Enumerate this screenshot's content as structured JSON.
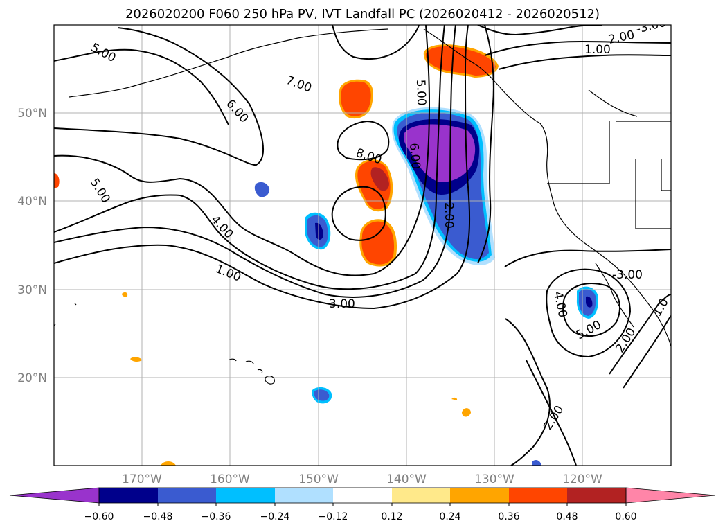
{
  "title": "2026020200 F060 250 hPa PV, IVT Landfall PC (2026020412 - 2026020512)",
  "map": {
    "lat_labels": [
      "50°N",
      "40°N",
      "30°N",
      "20°N"
    ],
    "lon_labels": [
      "170°W",
      "160°W",
      "150°W",
      "140°W",
      "130°W",
      "120°W"
    ],
    "contour_labels": [
      "5.00",
      "7.00",
      "6.00",
      "5.00",
      "4.00",
      "1.00",
      "3.00",
      "8.00",
      "5.00",
      "6.00",
      "2.00",
      "2.00",
      "1.00",
      "-3.00",
      "4.00",
      "5.00",
      "2.00",
      "2.00",
      "1.0",
      "-3.00",
      "5.00"
    ]
  },
  "colorbar": {
    "colors": [
      "#9933cc",
      "#00008b",
      "#3a5bd0",
      "#00bfff",
      "#b0e0ff",
      "#ffffff",
      "#ffe98a",
      "#ffa500",
      "#ff4500",
      "#b22222",
      "#ff85a8"
    ],
    "tick_labels": [
      "−0.60",
      "−0.48",
      "−0.36",
      "−0.24",
      "−0.12",
      "0.12",
      "0.24",
      "0.36",
      "0.48",
      "0.60"
    ]
  }
}
